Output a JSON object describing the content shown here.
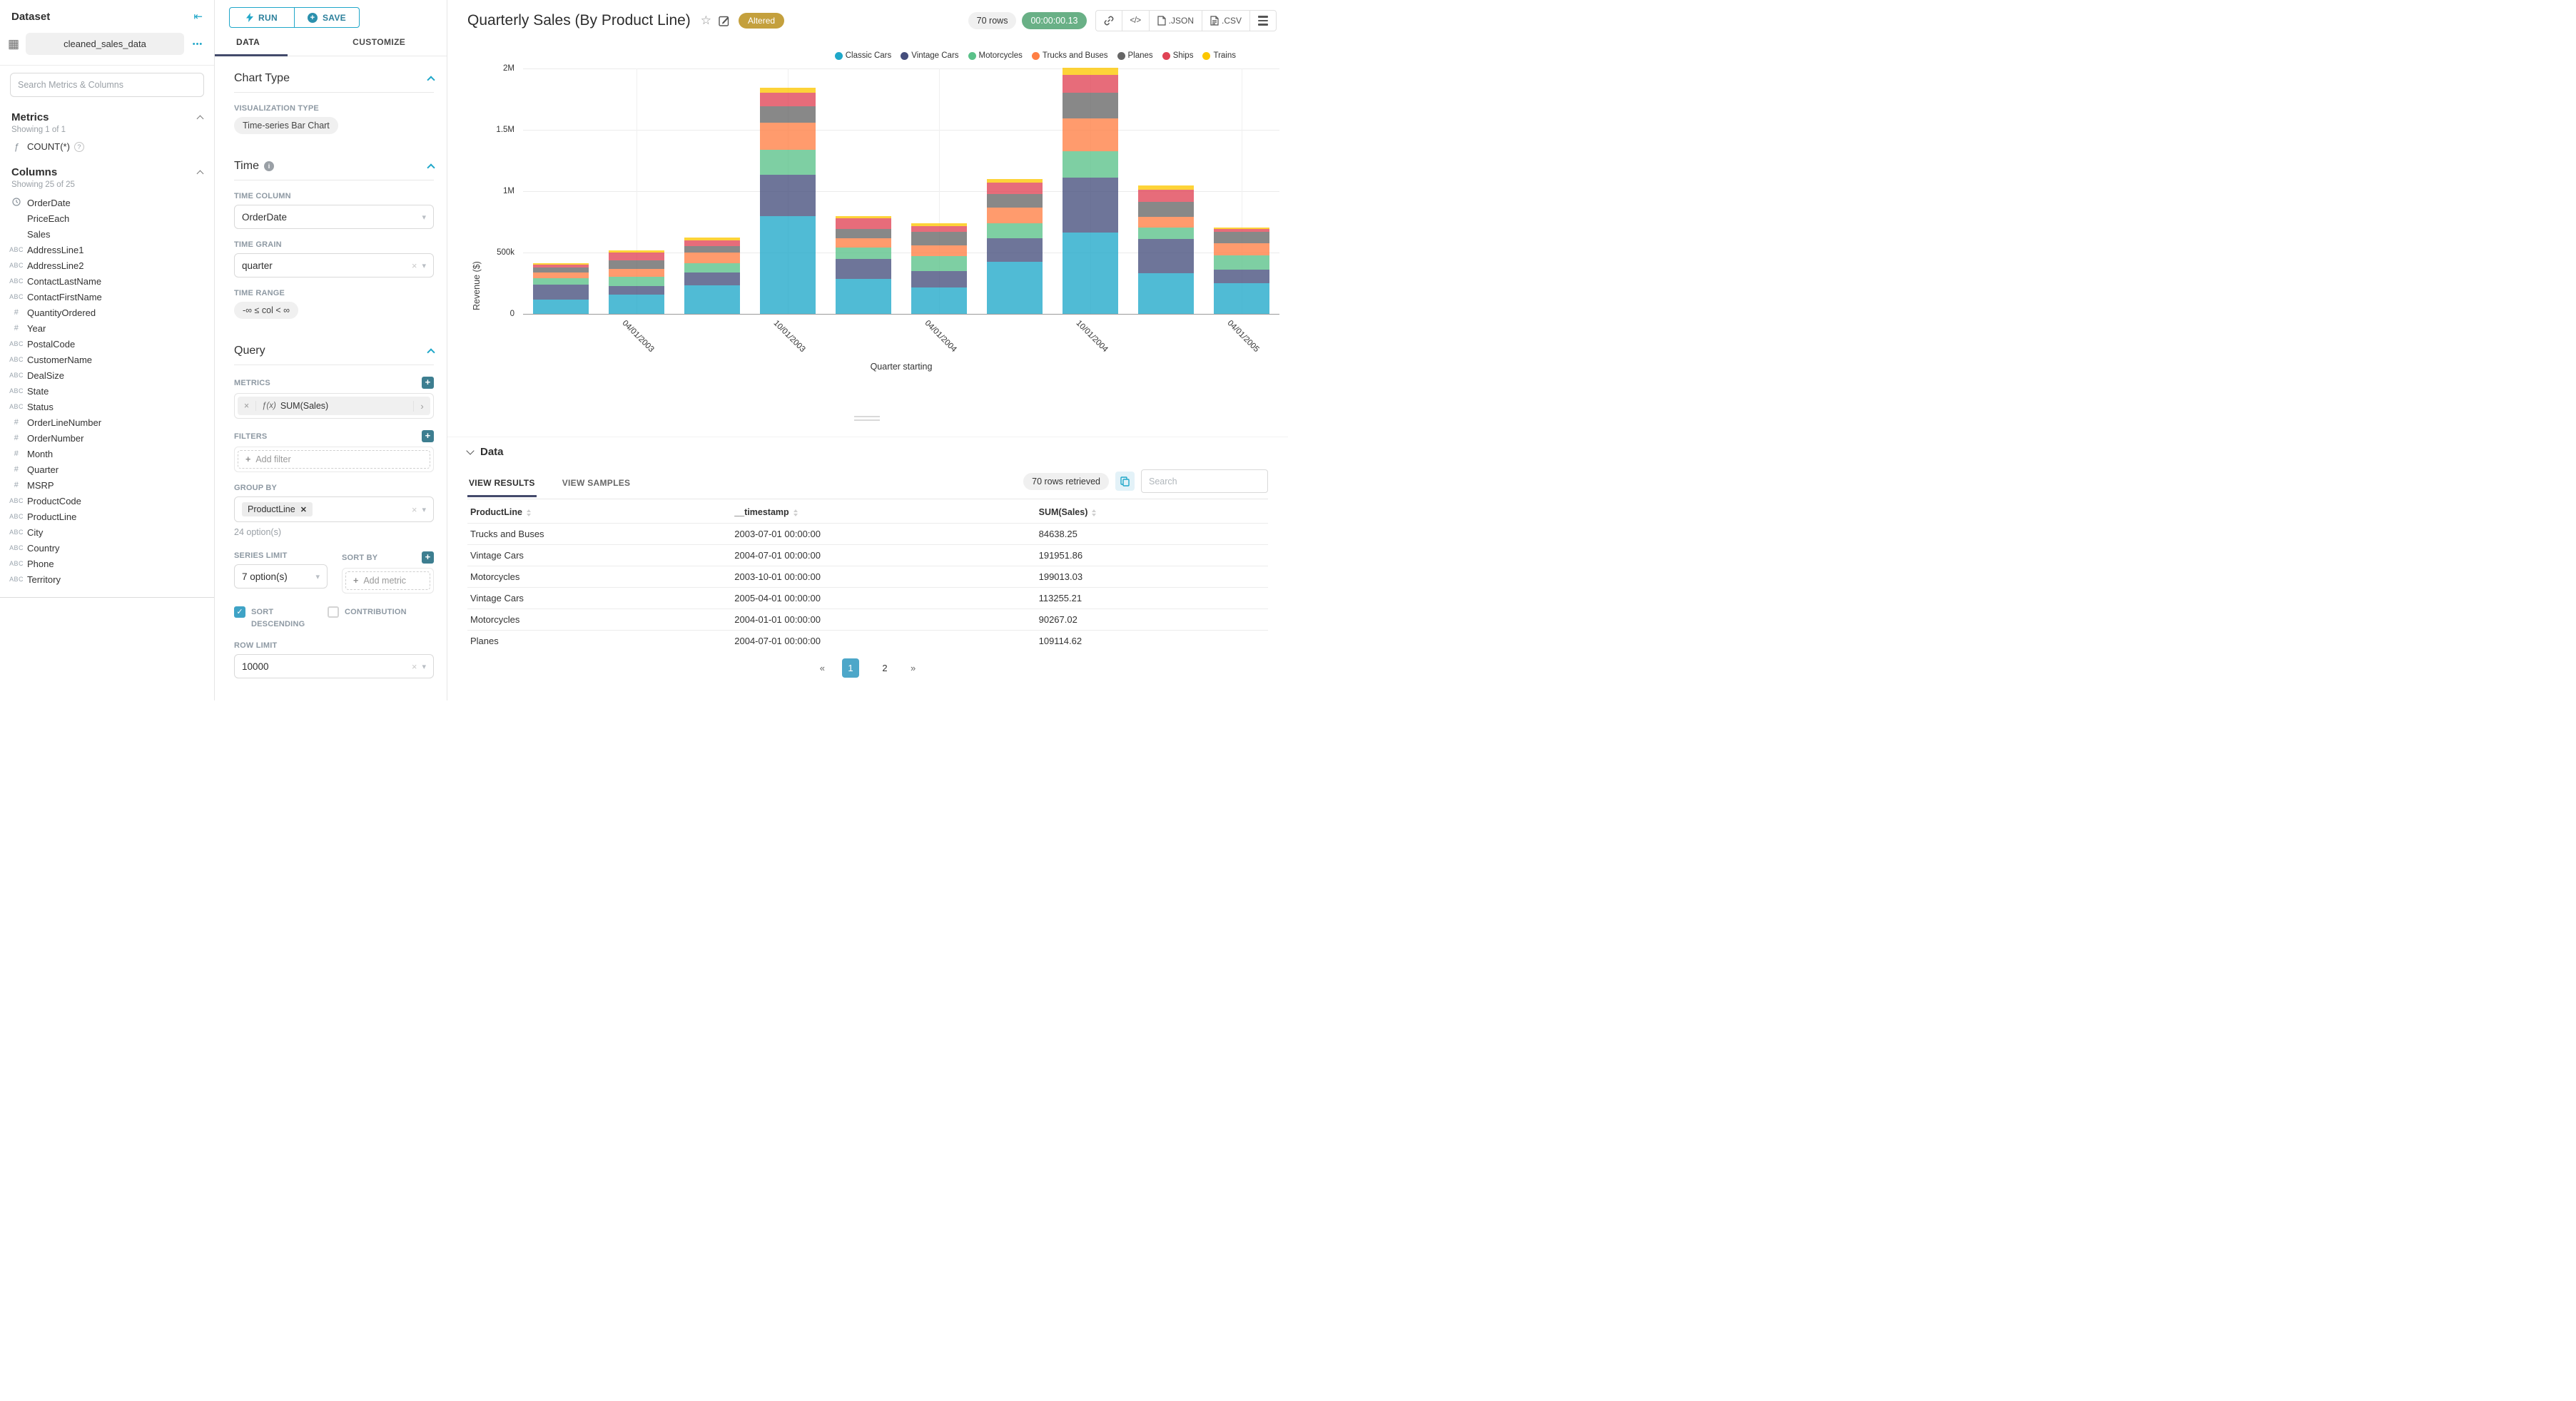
{
  "colors": {
    "accent": "#20a7c9",
    "ink_bar": "#434a6b",
    "badge_bg": "#c4a03d",
    "timer_bg": "#69b086",
    "pagination_active": "#4da7c9",
    "checkbox_checked": "#3fa3c6"
  },
  "icons": {
    "collapse_left": "⇤",
    "kebab_dots": "•••",
    "grid": "▦",
    "function": "ƒ",
    "help": "?",
    "info": "i",
    "star": "☆",
    "code": "</>",
    "caret_down": "▾",
    "clear": "×",
    "tag_remove": "✕",
    "expand_arrow": "›",
    "plus": "+",
    "check": "✓",
    "prev": "«",
    "next": "»",
    "infinity_range": "-∞ ≤ col < ∞"
  },
  "sidebar": {
    "title": "Dataset",
    "dataset_name": "cleaned_sales_data",
    "search_placeholder": "Search Metrics & Columns",
    "metrics": {
      "label": "Metrics",
      "showing": "Showing 1 of 1",
      "items": [
        {
          "icon": "function",
          "label": "COUNT(*)"
        }
      ]
    },
    "columns": {
      "label": "Columns",
      "showing": "Showing 25 of 25",
      "items": [
        {
          "type": "time",
          "label": "OrderDate"
        },
        {
          "type": "",
          "label": "PriceEach"
        },
        {
          "type": "",
          "label": "Sales"
        },
        {
          "type": "string",
          "label": "AddressLine1"
        },
        {
          "type": "string",
          "label": "AddressLine2"
        },
        {
          "type": "string",
          "label": "ContactLastName"
        },
        {
          "type": "string",
          "label": "ContactFirstName"
        },
        {
          "type": "number",
          "label": "QuantityOrdered"
        },
        {
          "type": "number",
          "label": "Year"
        },
        {
          "type": "string",
          "label": "PostalCode"
        },
        {
          "type": "string",
          "label": "CustomerName"
        },
        {
          "type": "string",
          "label": "DealSize"
        },
        {
          "type": "string",
          "label": "State"
        },
        {
          "type": "string",
          "label": "Status"
        },
        {
          "type": "number",
          "label": "OrderLineNumber"
        },
        {
          "type": "number",
          "label": "OrderNumber"
        },
        {
          "type": "number",
          "label": "Month"
        },
        {
          "type": "number",
          "label": "Quarter"
        },
        {
          "type": "number",
          "label": "MSRP"
        },
        {
          "type": "string",
          "label": "ProductCode"
        },
        {
          "type": "string",
          "label": "ProductLine"
        },
        {
          "type": "string",
          "label": "City"
        },
        {
          "type": "string",
          "label": "Country"
        },
        {
          "type": "string",
          "label": "Phone"
        },
        {
          "type": "string",
          "label": "Territory"
        }
      ]
    }
  },
  "panel": {
    "run_label": "RUN",
    "save_label": "SAVE",
    "tabs": [
      {
        "label": "DATA",
        "active": true
      },
      {
        "label": "CUSTOMIZE",
        "active": false
      }
    ],
    "chart_type": {
      "section": "Chart Type",
      "viz_label": "VISUALIZATION TYPE",
      "viz_value": "Time-series Bar Chart"
    },
    "time": {
      "section": "Time",
      "column_label": "TIME COLUMN",
      "column_value": "OrderDate",
      "grain_label": "TIME GRAIN",
      "grain_value": "quarter",
      "range_label": "TIME RANGE",
      "range_value": "-∞ ≤ col < ∞"
    },
    "query": {
      "section": "Query",
      "metrics_label": "METRICS",
      "metric_prefix": "ƒ(x)",
      "metric_value": "SUM(Sales)",
      "filters_label": "FILTERS",
      "add_filter_label": "Add filter",
      "group_by_label": "GROUP BY",
      "group_by_value": "ProductLine",
      "group_by_helper": "24 option(s)",
      "series_limit_label": "SERIES LIMIT",
      "series_limit_value": "7 option(s)",
      "sort_by_label": "SORT BY",
      "add_metric_label": "Add metric",
      "sort_descending_label": "SORT DESCENDING",
      "contribution_label": "CONTRIBUTION",
      "row_limit_label": "ROW LIMIT",
      "row_limit_value": "10000"
    }
  },
  "main": {
    "title": "Quarterly Sales (By Product Line)",
    "badge": "Altered",
    "rows_pill": "70 rows",
    "timer": "00:00:00.13",
    "toolbar": {
      "json_label": ".JSON",
      "csv_label": ".CSV"
    }
  },
  "chart_data": {
    "type": "bar",
    "stacked": true,
    "title": "Quarterly Sales (By Product Line)",
    "xlabel": "Quarter starting",
    "ylabel": "Revenue ($)",
    "ylim": [
      0,
      2000000
    ],
    "grid": true,
    "legend_position": "top-right",
    "x": [
      "01/01/2003",
      "04/01/2003",
      "07/01/2003",
      "10/01/2003",
      "01/01/2004",
      "04/01/2004",
      "07/01/2004",
      "10/01/2004",
      "01/01/2005",
      "04/01/2005"
    ],
    "x_ticks_shown": [
      "04/01/2003",
      "10/01/2003",
      "04/01/2004",
      "10/01/2004",
      "04/01/2005"
    ],
    "yticks": [
      {
        "label": "0",
        "value": 0
      },
      {
        "label": "500k",
        "value": 500000
      },
      {
        "label": "1M",
        "value": 1000000
      },
      {
        "label": "1.5M",
        "value": 1500000
      },
      {
        "label": "2M",
        "value": 2000000
      }
    ],
    "series": [
      {
        "name": "Classic Cars",
        "color": "#1FA8C9",
        "values": [
          125000,
          164000,
          239000,
          802000,
          289000,
          223000,
          428000,
          666000,
          338000,
          256000
        ]
      },
      {
        "name": "Vintage Cars",
        "color": "#454E7C",
        "values": [
          119000,
          67000,
          103000,
          340000,
          167000,
          131000,
          191951.86,
          450000,
          278000,
          113255.21
        ]
      },
      {
        "name": "Motorcycles",
        "color": "#5AC189",
        "values": [
          53000,
          79000,
          77000,
          199013.03,
          90267.02,
          123000,
          123000,
          213000,
          91000,
          115000
        ]
      },
      {
        "name": "Trucks and Buses",
        "color": "#FF7F44",
        "values": [
          49000,
          64000,
          84638.25,
          222000,
          77000,
          90000,
          131000,
          268000,
          90000,
          98000
        ]
      },
      {
        "name": "Planes",
        "color": "#666666",
        "values": [
          38000,
          66000,
          54000,
          134000,
          73000,
          107000,
          109114.62,
          213000,
          123000,
          90000
        ]
      },
      {
        "name": "Ships",
        "color": "#E04355",
        "values": [
          23000,
          66000,
          48000,
          110000,
          91000,
          49000,
          90000,
          142000,
          98000,
          25000
        ]
      },
      {
        "name": "Trains",
        "color": "#FCC700",
        "values": [
          13000,
          16000,
          21000,
          41000,
          16000,
          20000,
          30000,
          61000,
          33000,
          13000
        ]
      }
    ]
  },
  "data_panel": {
    "title": "Data",
    "tabs": [
      {
        "label": "VIEW RESULTS",
        "active": true
      },
      {
        "label": "VIEW SAMPLES",
        "active": false
      }
    ],
    "rows_retrieved": "70 rows retrieved",
    "search_placeholder": "Search",
    "table": {
      "headers": [
        "ProductLine",
        "__timestamp",
        "SUM(Sales)"
      ],
      "rows": [
        [
          "Trucks and Buses",
          "2003-07-01 00:00:00",
          "84638.25"
        ],
        [
          "Vintage Cars",
          "2004-07-01 00:00:00",
          "191951.86"
        ],
        [
          "Motorcycles",
          "2003-10-01 00:00:00",
          "199013.03"
        ],
        [
          "Vintage Cars",
          "2005-04-01 00:00:00",
          "113255.21"
        ],
        [
          "Motorcycles",
          "2004-01-01 00:00:00",
          "90267.02"
        ],
        [
          "Planes",
          "2004-07-01 00:00:00",
          "109114.62"
        ]
      ]
    },
    "pagination": {
      "prev": "«",
      "pages": [
        "1",
        "2"
      ],
      "active": "1",
      "next": "»"
    }
  }
}
